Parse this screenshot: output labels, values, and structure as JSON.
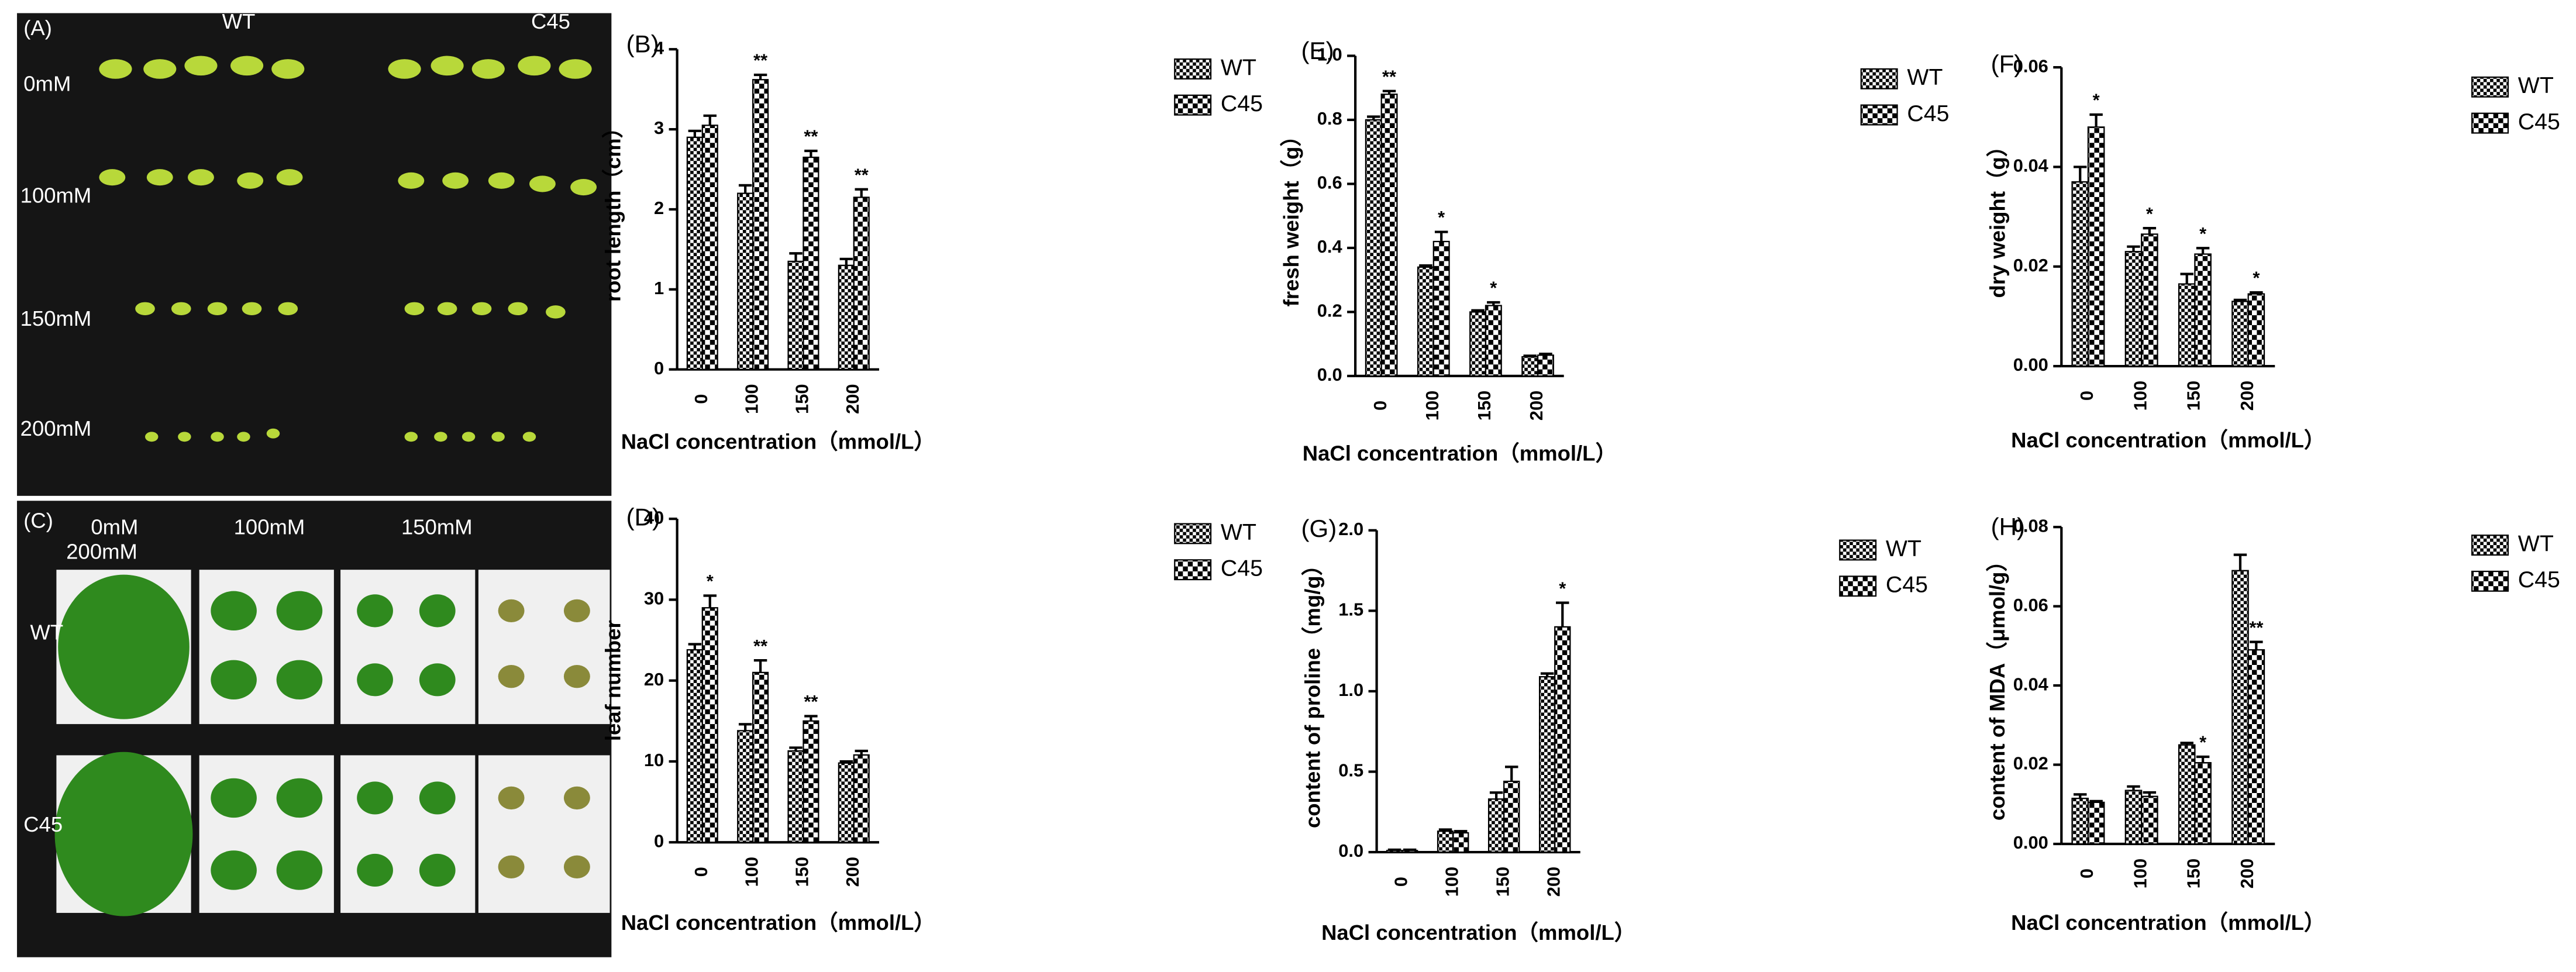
{
  "photos": {
    "A": {
      "panel": "(A)",
      "columns": [
        "WT",
        "C45"
      ],
      "rows": [
        "0mM",
        "100mM",
        "150mM",
        "200mM"
      ]
    },
    "C": {
      "panel": "(C)",
      "columns": [
        "0mM",
        "100mM",
        "150mM",
        "200mM"
      ],
      "rows": [
        "WT",
        "C45"
      ]
    }
  },
  "chart_data": [
    {
      "type": "bar",
      "panel": "(B)",
      "ylabel": "root length（cm）",
      "xlabel": "NaCl concentration（mmol/L）",
      "categories": [
        "0",
        "100",
        "150",
        "200"
      ],
      "ylim": [
        0,
        4
      ],
      "yticks": [
        0,
        1,
        2,
        3,
        4
      ],
      "series": [
        {
          "name": "WT",
          "color": "#000000",
          "values": [
            2.9,
            2.2,
            1.35,
            1.3
          ],
          "errors": [
            0.08,
            0.1,
            0.1,
            0.08
          ]
        },
        {
          "name": "C45",
          "color": "#000000",
          "values": [
            3.05,
            3.62,
            2.65,
            2.15
          ],
          "errors": [
            0.12,
            0.06,
            0.08,
            0.1
          ]
        }
      ],
      "annotations": [
        {
          "series": 1,
          "index": 1,
          "text": "**"
        },
        {
          "series": 1,
          "index": 2,
          "text": "**"
        },
        {
          "series": 1,
          "index": 3,
          "text": "**"
        }
      ]
    },
    {
      "type": "bar",
      "panel": "(E)",
      "ylabel": "fresh weight（g）",
      "xlabel": "NaCl concentration（mmol/L）",
      "categories": [
        "0",
        "100",
        "150",
        "200"
      ],
      "ylim": [
        0,
        1.0
      ],
      "yticks": [
        {
          "value": 0,
          "label": "0.0"
        },
        0.2,
        0.4,
        0.6,
        0.8,
        {
          "value": 1,
          "label": "1.0"
        }
      ],
      "series": [
        {
          "name": "WT",
          "color": "#000000",
          "values": [
            0.8,
            0.34,
            0.2,
            0.06
          ],
          "errors": [
            0.01,
            0.005,
            0.005,
            0.003
          ]
        },
        {
          "name": "C45",
          "color": "#000000",
          "values": [
            0.88,
            0.42,
            0.22,
            0.065
          ],
          "errors": [
            0.01,
            0.03,
            0.01,
            0.004
          ]
        }
      ],
      "annotations": [
        {
          "series": 1,
          "index": 0,
          "text": "**"
        },
        {
          "series": 1,
          "index": 1,
          "text": "*"
        },
        {
          "series": 1,
          "index": 2,
          "text": "*"
        }
      ]
    },
    {
      "type": "bar",
      "panel": "(F)",
      "ylabel": "dry weight（g）",
      "xlabel": "NaCl concentration（mmol/L）",
      "categories": [
        "0",
        "100",
        "150",
        "200"
      ],
      "ylim": [
        0,
        0.06
      ],
      "yticks": [
        {
          "value": 0,
          "label": "0.00"
        },
        {
          "value": 0.02,
          "label": "0.02"
        },
        {
          "value": 0.04,
          "label": "0.04"
        },
        {
          "value": 0.06,
          "label": "0.06"
        }
      ],
      "series": [
        {
          "name": "WT",
          "color": "#000000",
          "values": [
            0.037,
            0.023,
            0.0165,
            0.013
          ],
          "errors": [
            0.003,
            0.001,
            0.002,
            0.0003
          ]
        },
        {
          "name": "C45",
          "color": "#000000",
          "values": [
            0.048,
            0.0265,
            0.0225,
            0.0145
          ],
          "errors": [
            0.0025,
            0.0012,
            0.0012,
            0.0003
          ]
        }
      ],
      "annotations": [
        {
          "series": 1,
          "index": 0,
          "text": "*"
        },
        {
          "series": 1,
          "index": 1,
          "text": "*"
        },
        {
          "series": 1,
          "index": 2,
          "text": "*"
        },
        {
          "series": 1,
          "index": 3,
          "text": "*"
        }
      ]
    },
    {
      "type": "bar",
      "panel": "(D)",
      "ylabel": "leaf number",
      "xlabel": "NaCl concentration（mmol/L）",
      "categories": [
        "0",
        "100",
        "150",
        "200"
      ],
      "ylim": [
        0,
        40
      ],
      "yticks": [
        0,
        10,
        20,
        30,
        40
      ],
      "series": [
        {
          "name": "WT",
          "color": "#000000",
          "values": [
            23.8,
            13.8,
            11.3,
            9.8
          ],
          "errors": [
            0.7,
            0.8,
            0.4,
            0.2
          ]
        },
        {
          "name": "C45",
          "color": "#000000",
          "values": [
            29,
            21,
            15,
            10.8
          ],
          "errors": [
            1.5,
            1.5,
            0.6,
            0.5
          ]
        }
      ],
      "annotations": [
        {
          "series": 1,
          "index": 0,
          "text": "*"
        },
        {
          "series": 1,
          "index": 1,
          "text": "**"
        },
        {
          "series": 1,
          "index": 2,
          "text": "**"
        }
      ]
    },
    {
      "type": "bar",
      "panel": "(G)",
      "ylabel": "content of proline（mg/g）",
      "xlabel": "NaCl concentration（mmol/L）",
      "categories": [
        "0",
        "100",
        "150",
        "200"
      ],
      "ylim": [
        0,
        2.0
      ],
      "yticks": [
        {
          "value": 0,
          "label": "0.0"
        },
        0.5,
        {
          "value": 1,
          "label": "1.0"
        },
        1.5,
        {
          "value": 2,
          "label": "2.0"
        }
      ],
      "series": [
        {
          "name": "WT",
          "color": "#000000",
          "values": [
            0.01,
            0.13,
            0.33,
            1.09
          ],
          "errors": [
            0.005,
            0.01,
            0.04,
            0.02
          ]
        },
        {
          "name": "C45",
          "color": "#000000",
          "values": [
            0.01,
            0.12,
            0.44,
            1.4
          ],
          "errors": [
            0.005,
            0.01,
            0.09,
            0.15
          ]
        }
      ],
      "annotations": [
        {
          "series": 1,
          "index": 3,
          "text": "*"
        }
      ]
    },
    {
      "type": "bar",
      "panel": "(H)",
      "ylabel": "content of MDA（μmol/g）",
      "xlabel": "NaCl concentration（mmol/L）",
      "categories": [
        "0",
        "100",
        "150",
        "200"
      ],
      "ylim": [
        0,
        0.08
      ],
      "yticks": [
        {
          "value": 0,
          "label": "0.00"
        },
        {
          "value": 0.02,
          "label": "0.02"
        },
        {
          "value": 0.04,
          "label": "0.04"
        },
        {
          "value": 0.06,
          "label": "0.06"
        },
        {
          "value": 0.08,
          "label": "0.08"
        }
      ],
      "series": [
        {
          "name": "WT",
          "color": "#000000",
          "values": [
            0.0115,
            0.0135,
            0.025,
            0.069
          ],
          "errors": [
            0.001,
            0.001,
            0.0005,
            0.004
          ]
        },
        {
          "name": "C45",
          "color": "#000000",
          "values": [
            0.0105,
            0.012,
            0.0205,
            0.049
          ],
          "errors": [
            0.0003,
            0.001,
            0.0015,
            0.002
          ]
        }
      ],
      "annotations": [
        {
          "series": 1,
          "index": 2,
          "text": "*"
        },
        {
          "series": 1,
          "index": 3,
          "text": "**"
        }
      ]
    }
  ]
}
